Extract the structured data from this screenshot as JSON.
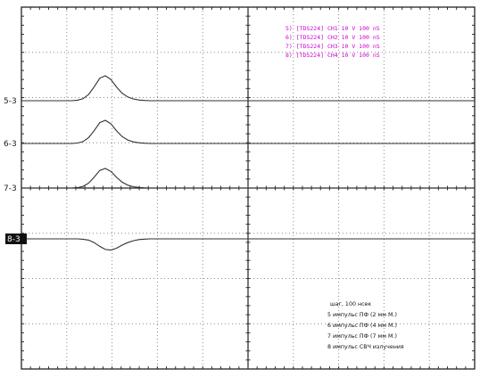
{
  "chart_data": {
    "type": "line",
    "title": "",
    "xlabel": "",
    "ylabel": "",
    "grid": true,
    "divisions": {
      "x": 10,
      "y": 8
    },
    "series": [
      {
        "label": "5-3",
        "marker_inverted": false,
        "values": [
          0,
          0,
          0,
          0,
          0,
          0,
          0,
          0,
          0,
          0,
          0.02,
          0.08,
          0.25,
          0.55,
          0.9,
          1.0,
          0.85,
          0.55,
          0.3,
          0.15,
          0.07,
          0.03,
          0.01,
          0,
          0,
          0,
          0,
          0,
          0,
          0,
          0,
          0,
          0,
          0,
          0,
          0,
          0,
          0,
          0,
          0,
          0,
          0,
          0,
          0,
          0,
          0,
          0,
          0,
          0,
          0,
          0,
          0,
          0,
          0,
          0,
          0,
          0,
          0,
          0,
          0,
          0,
          0,
          0,
          0,
          0,
          0,
          0,
          0,
          0,
          0,
          0,
          0,
          0,
          0,
          0,
          0,
          0,
          0,
          0,
          0,
          0,
          0
        ]
      },
      {
        "label": "6-3",
        "marker_inverted": false,
        "values": [
          0,
          0,
          0,
          0,
          0,
          0,
          0,
          0,
          0,
          0,
          0.02,
          0.08,
          0.25,
          0.55,
          0.9,
          1.0,
          0.85,
          0.55,
          0.3,
          0.15,
          0.07,
          0.03,
          0.01,
          0,
          0,
          0,
          0,
          0,
          0,
          0,
          0,
          0,
          0,
          0,
          0,
          0,
          0,
          0,
          0,
          0,
          0,
          0,
          0,
          0,
          0,
          0,
          0,
          0,
          0,
          0,
          0,
          0,
          0,
          0,
          0,
          0,
          0,
          0,
          0,
          0,
          0,
          0,
          0,
          0,
          0,
          0,
          0,
          0,
          0,
          0,
          0,
          0,
          0,
          0,
          0,
          0,
          0,
          0,
          0,
          0,
          0,
          0
        ]
      },
      {
        "label": "7-3",
        "marker_inverted": false,
        "values": [
          0,
          0,
          0,
          0,
          0,
          0,
          0,
          0,
          0,
          0,
          0.02,
          0.08,
          0.25,
          0.55,
          0.9,
          1.0,
          0.85,
          0.55,
          0.3,
          0.15,
          0.07,
          0.03,
          0.01,
          0,
          0,
          0,
          0,
          0,
          0,
          0,
          0,
          0,
          0,
          0,
          0,
          0,
          0,
          0,
          0,
          0,
          0,
          0,
          0,
          0,
          0,
          0,
          0,
          0,
          0,
          0,
          0,
          0,
          0,
          0,
          0,
          0,
          0,
          0,
          0,
          0,
          0,
          0,
          0,
          0,
          0,
          0,
          0,
          0,
          0,
          0,
          0,
          0,
          0,
          0,
          0,
          0,
          0,
          0,
          0,
          0,
          0,
          0
        ]
      },
      {
        "label": "8-3",
        "marker_inverted": true,
        "values": [
          0,
          0,
          0,
          0,
          0,
          0,
          0,
          0,
          0,
          0,
          0,
          -0.03,
          -0.1,
          -0.3,
          -0.6,
          -0.85,
          -0.9,
          -0.75,
          -0.5,
          -0.3,
          -0.15,
          -0.06,
          -0.02,
          0,
          0,
          0,
          0,
          0,
          0,
          0,
          0,
          0,
          0,
          0,
          0,
          0,
          0,
          0,
          0,
          0,
          0,
          0,
          0,
          0,
          0,
          0,
          0,
          0,
          0,
          0,
          0,
          0,
          0,
          0,
          0,
          0,
          0,
          0,
          0,
          0,
          0,
          0,
          0,
          0,
          0,
          0,
          0,
          0,
          0,
          0,
          0,
          0,
          0,
          0,
          0,
          0,
          0,
          0,
          0,
          0,
          0,
          0
        ]
      }
    ],
    "legend": [
      "5) [TDS224] CH1  10 V  100 nS",
      "6) [TDS224] CH2  10 V  100 nS",
      "7) [TDS224] CH3  10 V  100 nS",
      "8) [TDS224] CH4  10 V  100 nS"
    ],
    "annotation": [
      "шаг, 100 нсек",
      "5 импульс ПФ (2 мм М.)",
      "6 импульс ПФ (4 мм М.)",
      "7 импульс ПФ (7 мм М.)",
      "8 импульс СВЧ излучения"
    ],
    "colors": {
      "legend": "#d000d0",
      "trace": "#303030",
      "grid": "#8a8a8a"
    }
  }
}
